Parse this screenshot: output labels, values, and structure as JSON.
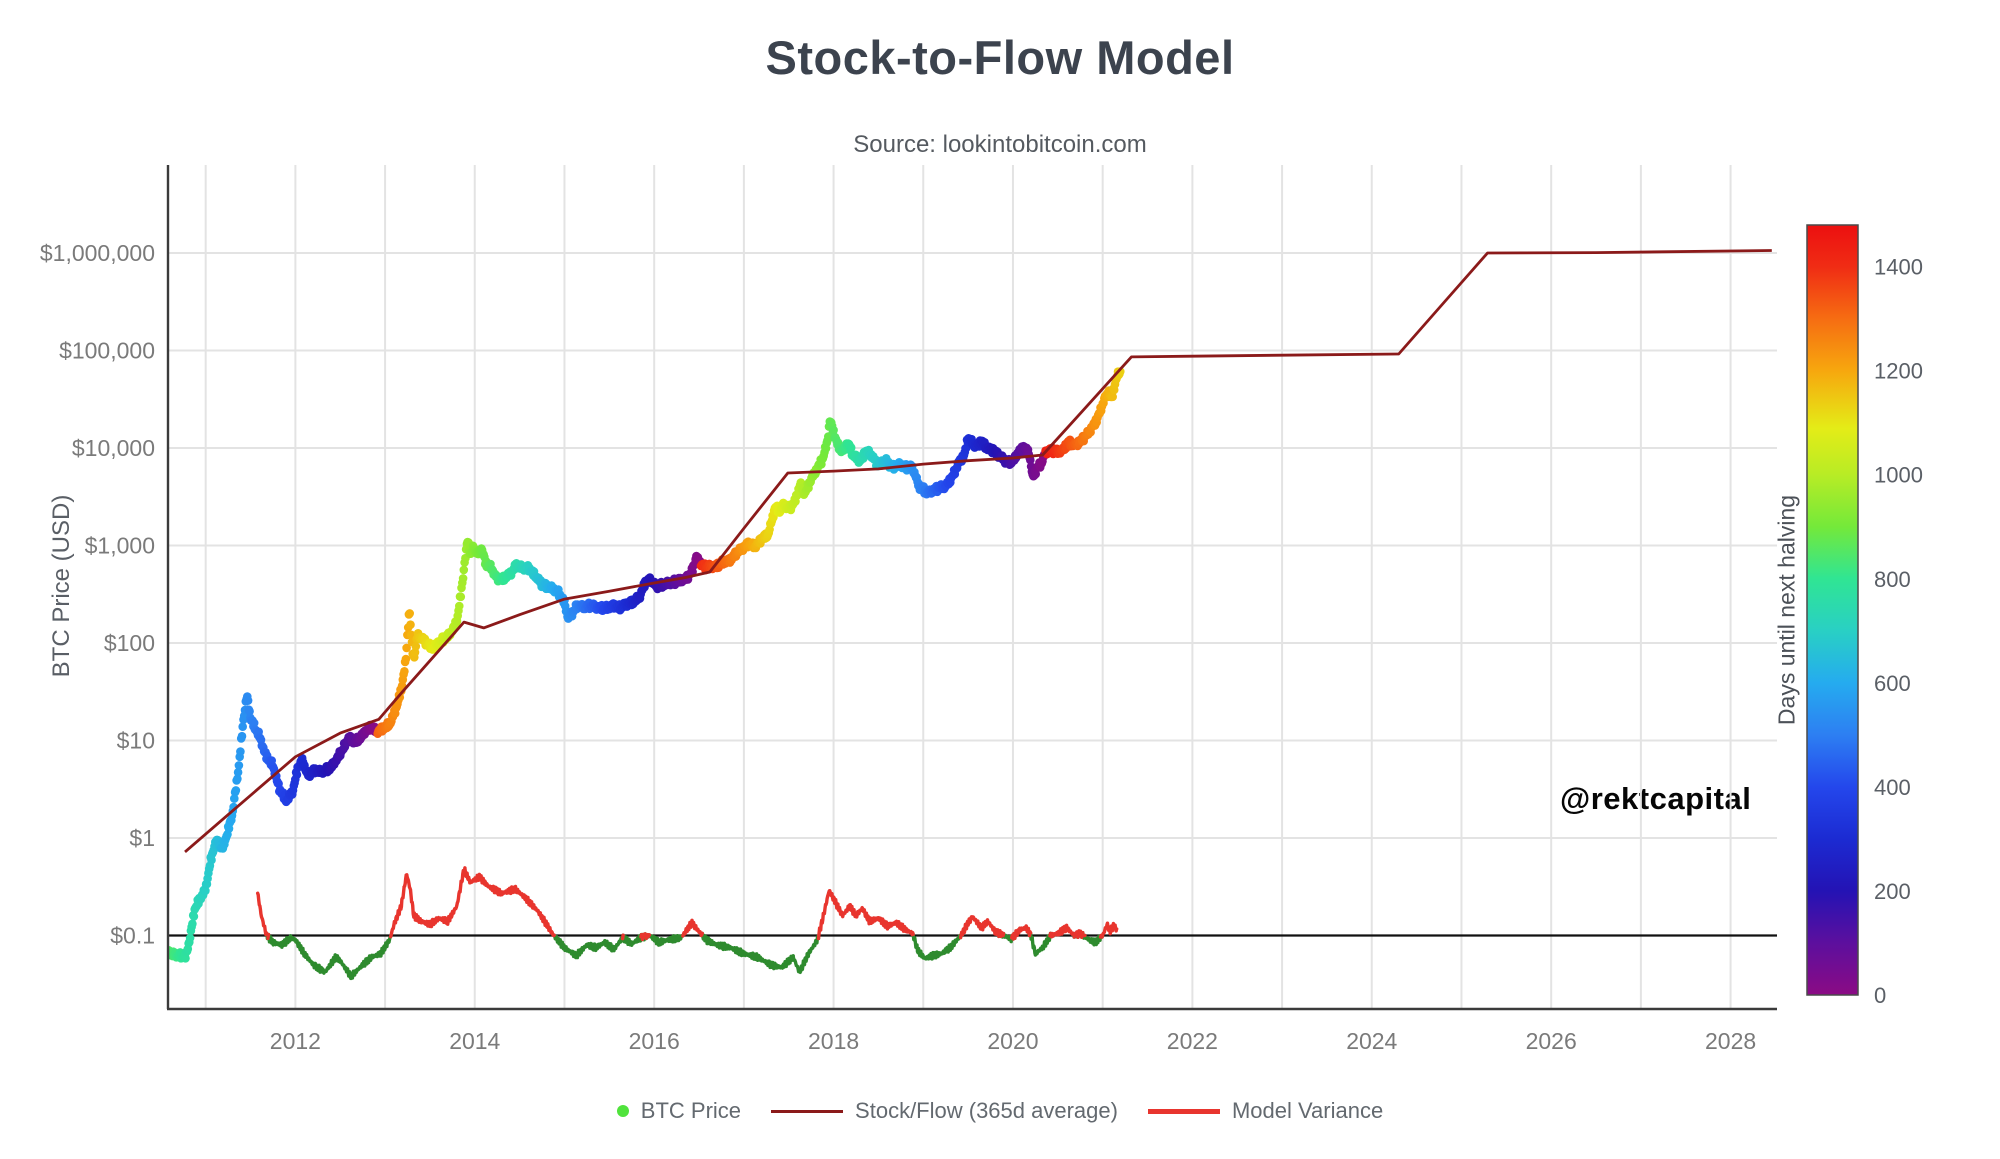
{
  "header": {
    "title": "Stock-to-Flow Model",
    "subtitle": "Source: lookintobitcoin.com"
  },
  "watermark": "@rektcapital",
  "axes": {
    "y_label": "BTC Price (USD)",
    "y_ticks": [
      {
        "label": "$0.1",
        "value": 0.1
      },
      {
        "label": "$1",
        "value": 1
      },
      {
        "label": "$10",
        "value": 10
      },
      {
        "label": "$100",
        "value": 100
      },
      {
        "label": "$1,000",
        "value": 1000
      },
      {
        "label": "$10,000",
        "value": 10000
      },
      {
        "label": "$100,000",
        "value": 100000
      },
      {
        "label": "$1,000,000",
        "value": 1000000
      }
    ],
    "x_ticks": [
      2012,
      2014,
      2016,
      2018,
      2020,
      2022,
      2024,
      2026,
      2028
    ],
    "grid_years_start": 2011,
    "grid_years_end": 2028,
    "x_range": [
      2010.58,
      2028.46
    ]
  },
  "colorbar": {
    "label": "Days until next halving",
    "ticks": [
      0,
      200,
      400,
      600,
      800,
      1000,
      1200,
      1400
    ],
    "max": 1480,
    "stops": [
      [
        0,
        "#8b0b84"
      ],
      [
        100,
        "#5c0f9e"
      ],
      [
        200,
        "#2413b4"
      ],
      [
        300,
        "#1c2bd2"
      ],
      [
        400,
        "#2447ec"
      ],
      [
        500,
        "#2d7ff2"
      ],
      [
        600,
        "#25abef"
      ],
      [
        700,
        "#29d0c4"
      ],
      [
        800,
        "#30e593"
      ],
      [
        900,
        "#74e93a"
      ],
      [
        1000,
        "#b8ec25"
      ],
      [
        1090,
        "#e4ec17"
      ],
      [
        1200,
        "#f7a70e"
      ],
      [
        1300,
        "#f66d12"
      ],
      [
        1400,
        "#f02c14"
      ],
      [
        1480,
        "#ec1010"
      ]
    ]
  },
  "legend": [
    {
      "label": "BTC Price",
      "marker": "dot",
      "color": "#50e33c"
    },
    {
      "label": "Stock/Flow (365d average)",
      "marker": "thin-line",
      "color": "#8b1a1a"
    },
    {
      "label": "Model Variance",
      "marker": "thick-line",
      "color": "#e8352e"
    }
  ],
  "style": {
    "grid_color": "#e3e3e3",
    "spine_color": "#3b3b3b",
    "tick_color": "#7a7a7a",
    "baseline_color": "#111111",
    "model_color": "#8b1a1a",
    "variance_above_color": "#e8352e",
    "variance_below_color": "#2e8b2e"
  },
  "chart_data": {
    "type": "scatter+line",
    "title": "Stock-to-Flow Model",
    "ylabel": "BTC Price (USD)",
    "y_scale": "log",
    "ylim": [
      0.018,
      7900000
    ],
    "xlim": [
      2010.58,
      2028.46
    ],
    "halving_dates_decimal_years": [
      2012.9096,
      2016.5212,
      2020.3617,
      2024.3033
    ],
    "variance_baseline": 0.1,
    "btc_price": [
      [
        2010.58,
        0.066
      ],
      [
        2010.7,
        0.062
      ],
      [
        2010.78,
        0.061
      ],
      [
        2010.82,
        0.09
      ],
      [
        2010.88,
        0.19
      ],
      [
        2010.95,
        0.25
      ],
      [
        2011.0,
        0.3
      ],
      [
        2011.05,
        0.55
      ],
      [
        2011.1,
        0.85
      ],
      [
        2011.14,
        0.95
      ],
      [
        2011.18,
        0.75
      ],
      [
        2011.24,
        1.1
      ],
      [
        2011.3,
        1.8
      ],
      [
        2011.37,
        5.5
      ],
      [
        2011.42,
        16
      ],
      [
        2011.46,
        29
      ],
      [
        2011.5,
        17
      ],
      [
        2011.54,
        14
      ],
      [
        2011.6,
        11
      ],
      [
        2011.67,
        7
      ],
      [
        2011.75,
        5.5
      ],
      [
        2011.82,
        3.2
      ],
      [
        2011.9,
        2.4
      ],
      [
        2011.97,
        3.0
      ],
      [
        2012.03,
        5.4
      ],
      [
        2012.08,
        6.2
      ],
      [
        2012.14,
        4.4
      ],
      [
        2012.22,
        4.9
      ],
      [
        2012.3,
        4.8
      ],
      [
        2012.38,
        5.1
      ],
      [
        2012.46,
        6.4
      ],
      [
        2012.54,
        8.5
      ],
      [
        2012.6,
        11
      ],
      [
        2012.66,
        9.5
      ],
      [
        2012.72,
        10.5
      ],
      [
        2012.78,
        12.5
      ],
      [
        2012.84,
        13.5
      ],
      [
        2012.91,
        12.3
      ],
      [
        2012.97,
        13.2
      ],
      [
        2013.05,
        14.5
      ],
      [
        2013.12,
        21
      ],
      [
        2013.18,
        33
      ],
      [
        2013.23,
        65
      ],
      [
        2013.27,
        225
      ],
      [
        2013.3,
        95
      ],
      [
        2013.32,
        68
      ],
      [
        2013.36,
        118
      ],
      [
        2013.42,
        110
      ],
      [
        2013.48,
        95
      ],
      [
        2013.54,
        88
      ],
      [
        2013.6,
        102
      ],
      [
        2013.68,
        112
      ],
      [
        2013.75,
        135
      ],
      [
        2013.8,
        165
      ],
      [
        2013.85,
        340
      ],
      [
        2013.89,
        700
      ],
      [
        2013.92,
        1150
      ],
      [
        2013.95,
        800
      ],
      [
        2013.99,
        950
      ],
      [
        2014.03,
        820
      ],
      [
        2014.08,
        930
      ],
      [
        2014.12,
        650
      ],
      [
        2014.18,
        590
      ],
      [
        2014.25,
        460
      ],
      [
        2014.32,
        450
      ],
      [
        2014.4,
        520
      ],
      [
        2014.46,
        620
      ],
      [
        2014.52,
        590
      ],
      [
        2014.6,
        585
      ],
      [
        2014.68,
        480
      ],
      [
        2014.76,
        390
      ],
      [
        2014.84,
        370
      ],
      [
        2014.92,
        340
      ],
      [
        2015.0,
        260
      ],
      [
        2015.04,
        180
      ],
      [
        2015.1,
        210
      ],
      [
        2015.15,
        245
      ],
      [
        2015.22,
        235
      ],
      [
        2015.3,
        240
      ],
      [
        2015.38,
        232
      ],
      [
        2015.46,
        225
      ],
      [
        2015.54,
        245
      ],
      [
        2015.62,
        228
      ],
      [
        2015.7,
        255
      ],
      [
        2015.78,
        265
      ],
      [
        2015.84,
        300
      ],
      [
        2015.9,
        420
      ],
      [
        2015.96,
        440
      ],
      [
        2016.02,
        385
      ],
      [
        2016.1,
        395
      ],
      [
        2016.18,
        415
      ],
      [
        2016.27,
        435
      ],
      [
        2016.35,
        450
      ],
      [
        2016.42,
        540
      ],
      [
        2016.47,
        760
      ],
      [
        2016.52,
        650
      ],
      [
        2016.57,
        600
      ],
      [
        2016.63,
        610
      ],
      [
        2016.7,
        620
      ],
      [
        2016.78,
        680
      ],
      [
        2016.85,
        720
      ],
      [
        2016.93,
        850
      ],
      [
        2017.0,
        970
      ],
      [
        2017.06,
        1050
      ],
      [
        2017.12,
        960
      ],
      [
        2017.2,
        1180
      ],
      [
        2017.27,
        1280
      ],
      [
        2017.35,
        2500
      ],
      [
        2017.4,
        2250
      ],
      [
        2017.45,
        2650
      ],
      [
        2017.5,
        2350
      ],
      [
        2017.57,
        2850
      ],
      [
        2017.63,
        4300
      ],
      [
        2017.68,
        3400
      ],
      [
        2017.75,
        4800
      ],
      [
        2017.82,
        6200
      ],
      [
        2017.88,
        7800
      ],
      [
        2017.93,
        11500
      ],
      [
        2017.96,
        19500
      ],
      [
        2018.0,
        14500
      ],
      [
        2018.05,
        10500
      ],
      [
        2018.1,
        9200
      ],
      [
        2018.16,
        11300
      ],
      [
        2018.22,
        8300
      ],
      [
        2018.3,
        7400
      ],
      [
        2018.36,
        9300
      ],
      [
        2018.42,
        8500
      ],
      [
        2018.5,
        6600
      ],
      [
        2018.58,
        7500
      ],
      [
        2018.65,
        6400
      ],
      [
        2018.73,
        6700
      ],
      [
        2018.8,
        6450
      ],
      [
        2018.87,
        6350
      ],
      [
        2018.9,
        5600
      ],
      [
        2018.95,
        4100
      ],
      [
        2019.0,
        3800
      ],
      [
        2019.04,
        3450
      ],
      [
        2019.1,
        3650
      ],
      [
        2019.18,
        3950
      ],
      [
        2019.25,
        4050
      ],
      [
        2019.33,
        5200
      ],
      [
        2019.4,
        7200
      ],
      [
        2019.46,
        8600
      ],
      [
        2019.5,
        12800
      ],
      [
        2019.55,
        11200
      ],
      [
        2019.6,
        10400
      ],
      [
        2019.65,
        11900
      ],
      [
        2019.7,
        10100
      ],
      [
        2019.78,
        9600
      ],
      [
        2019.85,
        8200
      ],
      [
        2019.93,
        7300
      ],
      [
        2020.0,
        7250
      ],
      [
        2020.07,
        9300
      ],
      [
        2020.12,
        10200
      ],
      [
        2020.18,
        8900
      ],
      [
        2020.22,
        5000
      ],
      [
        2020.27,
        6300
      ],
      [
        2020.32,
        7100
      ],
      [
        2020.36,
        8900
      ],
      [
        2020.42,
        9600
      ],
      [
        2020.5,
        9200
      ],
      [
        2020.55,
        9400
      ],
      [
        2020.62,
        11600
      ],
      [
        2020.68,
        10700
      ],
      [
        2020.75,
        11700
      ],
      [
        2020.82,
        13600
      ],
      [
        2020.88,
        16200
      ],
      [
        2020.93,
        19200
      ],
      [
        2020.97,
        23500
      ],
      [
        2021.02,
        32000
      ],
      [
        2021.07,
        37500
      ],
      [
        2021.1,
        31500
      ],
      [
        2021.14,
        47000
      ],
      [
        2021.17,
        57000
      ],
      [
        2021.2,
        60000
      ]
    ],
    "stock_flow_model": [
      [
        2010.77,
        0.72
      ],
      [
        2011.3,
        1.9
      ],
      [
        2012.0,
        6.8
      ],
      [
        2012.5,
        11.9
      ],
      [
        2012.93,
        16.5
      ],
      [
        2013.2,
        32
      ],
      [
        2013.55,
        74
      ],
      [
        2013.88,
        164
      ],
      [
        2014.1,
        143
      ],
      [
        2014.5,
        195
      ],
      [
        2015.0,
        282
      ],
      [
        2015.5,
        340
      ],
      [
        2016.0,
        412
      ],
      [
        2016.35,
        470
      ],
      [
        2016.62,
        535
      ],
      [
        2017.0,
        1500
      ],
      [
        2017.49,
        5540
      ],
      [
        2018.0,
        5800
      ],
      [
        2018.5,
        6100
      ],
      [
        2019.0,
        6840
      ],
      [
        2019.5,
        7400
      ],
      [
        2020.0,
        7890
      ],
      [
        2020.33,
        8470
      ],
      [
        2020.7,
        20100
      ],
      [
        2021.0,
        40600
      ],
      [
        2021.32,
        85900
      ],
      [
        2022.0,
        87500
      ],
      [
        2023.0,
        89500
      ],
      [
        2024.3,
        92000
      ],
      [
        2024.8,
        307000
      ],
      [
        2025.29,
        1000000
      ],
      [
        2026.5,
        1010000
      ],
      [
        2028.46,
        1060000
      ]
    ],
    "model_variance": [
      [
        2011.58,
        0.27
      ],
      [
        2011.62,
        0.16
      ],
      [
        2011.68,
        0.1
      ],
      [
        2011.75,
        0.085
      ],
      [
        2011.85,
        0.08
      ],
      [
        2011.95,
        0.095
      ],
      [
        2012.0,
        0.09
      ],
      [
        2012.1,
        0.065
      ],
      [
        2012.2,
        0.05
      ],
      [
        2012.33,
        0.042
      ],
      [
        2012.45,
        0.06
      ],
      [
        2012.5,
        0.055
      ],
      [
        2012.62,
        0.038
      ],
      [
        2012.75,
        0.05
      ],
      [
        2012.85,
        0.06
      ],
      [
        2012.95,
        0.065
      ],
      [
        2013.05,
        0.09
      ],
      [
        2013.1,
        0.13
      ],
      [
        2013.18,
        0.2
      ],
      [
        2013.24,
        0.43
      ],
      [
        2013.28,
        0.3
      ],
      [
        2013.32,
        0.16
      ],
      [
        2013.4,
        0.14
      ],
      [
        2013.5,
        0.13
      ],
      [
        2013.6,
        0.15
      ],
      [
        2013.7,
        0.14
      ],
      [
        2013.8,
        0.2
      ],
      [
        2013.88,
        0.48
      ],
      [
        2013.95,
        0.35
      ],
      [
        2014.05,
        0.4
      ],
      [
        2014.15,
        0.32
      ],
      [
        2014.3,
        0.27
      ],
      [
        2014.45,
        0.3
      ],
      [
        2014.55,
        0.25
      ],
      [
        2014.7,
        0.18
      ],
      [
        2014.8,
        0.13
      ],
      [
        2014.88,
        0.1
      ],
      [
        2015.0,
        0.075
      ],
      [
        2015.13,
        0.062
      ],
      [
        2015.25,
        0.08
      ],
      [
        2015.35,
        0.075
      ],
      [
        2015.45,
        0.085
      ],
      [
        2015.55,
        0.072
      ],
      [
        2015.65,
        0.095
      ],
      [
        2015.75,
        0.082
      ],
      [
        2015.85,
        0.095
      ],
      [
        2015.95,
        0.1
      ],
      [
        2016.05,
        0.085
      ],
      [
        2016.15,
        0.09
      ],
      [
        2016.3,
        0.095
      ],
      [
        2016.42,
        0.135
      ],
      [
        2016.5,
        0.11
      ],
      [
        2016.58,
        0.09
      ],
      [
        2016.7,
        0.08
      ],
      [
        2016.85,
        0.075
      ],
      [
        2017.0,
        0.065
      ],
      [
        2017.15,
        0.06
      ],
      [
        2017.3,
        0.05
      ],
      [
        2017.42,
        0.047
      ],
      [
        2017.55,
        0.06
      ],
      [
        2017.62,
        0.042
      ],
      [
        2017.72,
        0.065
      ],
      [
        2017.82,
        0.09
      ],
      [
        2017.88,
        0.15
      ],
      [
        2017.95,
        0.29
      ],
      [
        2018.02,
        0.22
      ],
      [
        2018.1,
        0.16
      ],
      [
        2018.18,
        0.2
      ],
      [
        2018.25,
        0.16
      ],
      [
        2018.32,
        0.19
      ],
      [
        2018.4,
        0.14
      ],
      [
        2018.5,
        0.15
      ],
      [
        2018.6,
        0.125
      ],
      [
        2018.7,
        0.135
      ],
      [
        2018.8,
        0.115
      ],
      [
        2018.88,
        0.105
      ],
      [
        2018.94,
        0.07
      ],
      [
        2019.02,
        0.058
      ],
      [
        2019.1,
        0.062
      ],
      [
        2019.2,
        0.065
      ],
      [
        2019.3,
        0.075
      ],
      [
        2019.42,
        0.1
      ],
      [
        2019.5,
        0.135
      ],
      [
        2019.55,
        0.155
      ],
      [
        2019.65,
        0.12
      ],
      [
        2019.72,
        0.14
      ],
      [
        2019.8,
        0.11
      ],
      [
        2019.9,
        0.1
      ],
      [
        2019.98,
        0.092
      ],
      [
        2020.08,
        0.115
      ],
      [
        2020.15,
        0.12
      ],
      [
        2020.2,
        0.1
      ],
      [
        2020.25,
        0.065
      ],
      [
        2020.33,
        0.075
      ],
      [
        2020.42,
        0.1
      ],
      [
        2020.5,
        0.105
      ],
      [
        2020.6,
        0.12
      ],
      [
        2020.68,
        0.1
      ],
      [
        2020.75,
        0.105
      ],
      [
        2020.85,
        0.09
      ],
      [
        2020.92,
        0.085
      ],
      [
        2021.0,
        0.1
      ],
      [
        2021.05,
        0.13
      ],
      [
        2021.08,
        0.11
      ],
      [
        2021.12,
        0.125
      ],
      [
        2021.16,
        0.115
      ]
    ]
  }
}
